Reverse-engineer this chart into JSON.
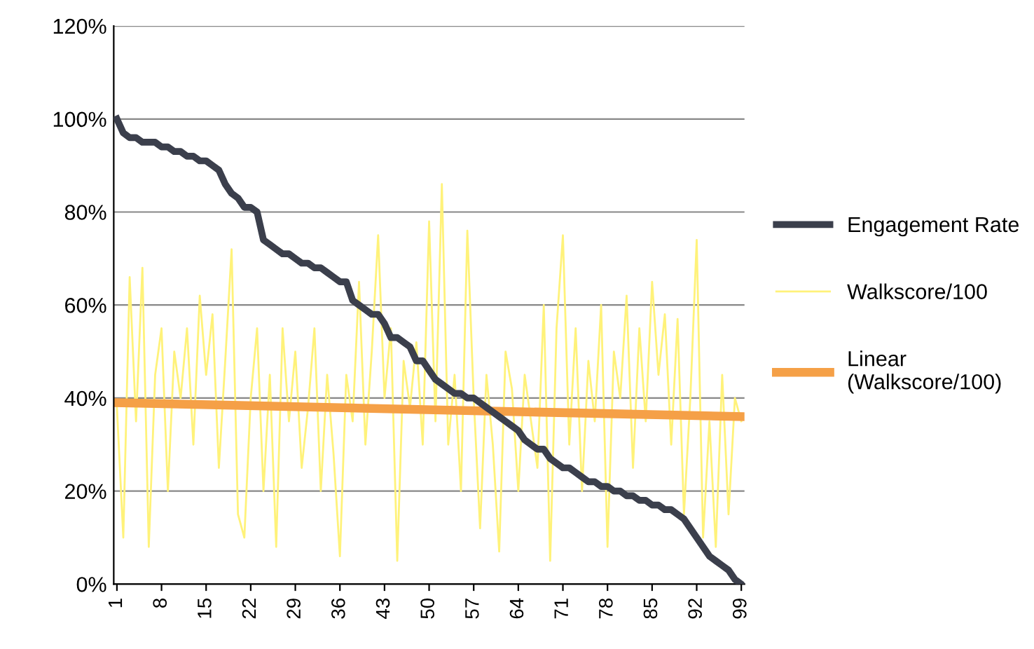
{
  "chart_data": {
    "type": "line",
    "x": [
      1,
      2,
      3,
      4,
      5,
      6,
      7,
      8,
      9,
      10,
      11,
      12,
      13,
      14,
      15,
      16,
      17,
      18,
      19,
      20,
      21,
      22,
      23,
      24,
      25,
      26,
      27,
      28,
      29,
      30,
      31,
      32,
      33,
      34,
      35,
      36,
      37,
      38,
      39,
      40,
      41,
      42,
      43,
      44,
      45,
      46,
      47,
      48,
      49,
      50,
      51,
      52,
      53,
      54,
      55,
      56,
      57,
      58,
      59,
      60,
      61,
      62,
      63,
      64,
      65,
      66,
      67,
      68,
      69,
      70,
      71,
      72,
      73,
      74,
      75,
      76,
      77,
      78,
      79,
      80,
      81,
      82,
      83,
      84,
      85,
      86,
      87,
      88,
      89,
      90,
      91,
      92,
      93,
      94,
      95,
      96,
      97,
      98,
      99
    ],
    "xlim": [
      0.5,
      99.5
    ],
    "xticks": [
      1,
      8,
      15,
      22,
      29,
      36,
      43,
      50,
      57,
      64,
      71,
      78,
      85,
      92,
      99
    ],
    "ylim": [
      0,
      120
    ],
    "yticks": [
      {
        "value": 0,
        "label": "0%"
      },
      {
        "value": 20,
        "label": "20%"
      },
      {
        "value": 40,
        "label": "40%"
      },
      {
        "value": 60,
        "label": "60%"
      },
      {
        "value": 80,
        "label": "80%"
      },
      {
        "value": 100,
        "label": "100%"
      },
      {
        "value": 120,
        "label": "120%"
      }
    ],
    "grid": "y",
    "legend": "right",
    "series": [
      {
        "name": "Engagement Rate",
        "color": "#3b3f4c",
        "values": [
          100,
          97,
          96,
          96,
          95,
          95,
          95,
          94,
          94,
          93,
          93,
          92,
          92,
          91,
          91,
          90,
          89,
          86,
          84,
          83,
          81,
          81,
          80,
          74,
          73,
          72,
          71,
          71,
          70,
          69,
          69,
          68,
          68,
          67,
          66,
          65,
          65,
          61,
          60,
          59,
          58,
          58,
          56,
          53,
          53,
          52,
          51,
          48,
          48,
          46,
          44,
          43,
          42,
          41,
          41,
          40,
          40,
          39,
          38,
          37,
          36,
          35,
          34,
          33,
          31,
          30,
          29,
          29,
          27,
          26,
          25,
          25,
          24,
          23,
          22,
          22,
          21,
          21,
          20,
          20,
          19,
          19,
          18,
          18,
          17,
          17,
          16,
          16,
          15,
          14,
          12,
          10,
          8,
          6,
          5,
          4,
          3,
          1,
          0
        ]
      },
      {
        "name": "Walkscore/100",
        "color": "#fff27a",
        "values": [
          38,
          10,
          66,
          35,
          68,
          8,
          45,
          55,
          20,
          50,
          40,
          55,
          30,
          62,
          45,
          58,
          25,
          48,
          72,
          15,
          10,
          40,
          55,
          20,
          45,
          8,
          55,
          35,
          50,
          25,
          38,
          55,
          20,
          45,
          28,
          6,
          45,
          35,
          65,
          30,
          50,
          75,
          40,
          55,
          5,
          48,
          38,
          52,
          30,
          78,
          35,
          86,
          30,
          45,
          20,
          76,
          40,
          12,
          45,
          30,
          7,
          50,
          42,
          20,
          45,
          35,
          25,
          60,
          5,
          55,
          75,
          30,
          55,
          20,
          48,
          35,
          60,
          8,
          50,
          40,
          62,
          25,
          55,
          35,
          65,
          45,
          58,
          30,
          57,
          15,
          40,
          74,
          10,
          35,
          8,
          45,
          15,
          40,
          35
        ]
      },
      {
        "name": "Linear\n(Walkscore/100)",
        "color": "#f5a047",
        "x": [
          1,
          99
        ],
        "values": [
          39,
          36
        ]
      }
    ]
  }
}
